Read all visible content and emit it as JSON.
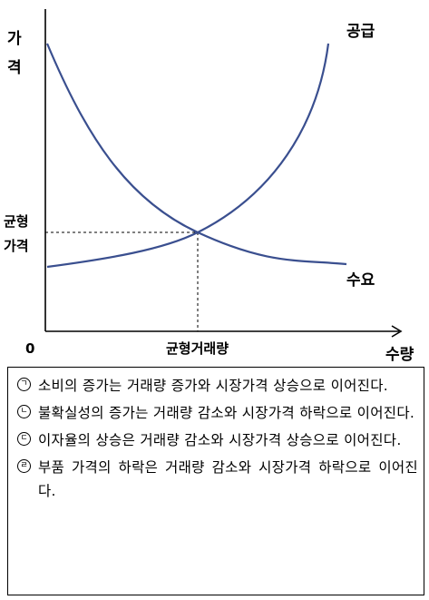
{
  "diagram": {
    "y_axis_title": "가격",
    "x_axis_title": "수량",
    "origin_label": "0",
    "supply_label": "공급",
    "demand_label": "수요",
    "equilibrium_price_label": "균형가격",
    "equilibrium_quantity_label": "균형거래량",
    "colors": {
      "curve": "#3a4f8f",
      "axis": "#000000",
      "guide": "#000000"
    }
  },
  "statements": [
    {
      "marker": "ㄱ",
      "text": "소비의 증가는 거래량 증가와 시장가격 상승으로 이어진다."
    },
    {
      "marker": "ㄴ",
      "text": "불확실성의 증가는 거래량 감소와 시장가격 하락으로 이어진다."
    },
    {
      "marker": "ㄷ",
      "text": "이자율의 상승은 거래량 감소와 시장가격 상승으로 이어진다."
    },
    {
      "marker": "ㄹ",
      "text": "부품 가격의 하락은 거래량 감소와 시장가격 하락으로 이어진다."
    }
  ]
}
